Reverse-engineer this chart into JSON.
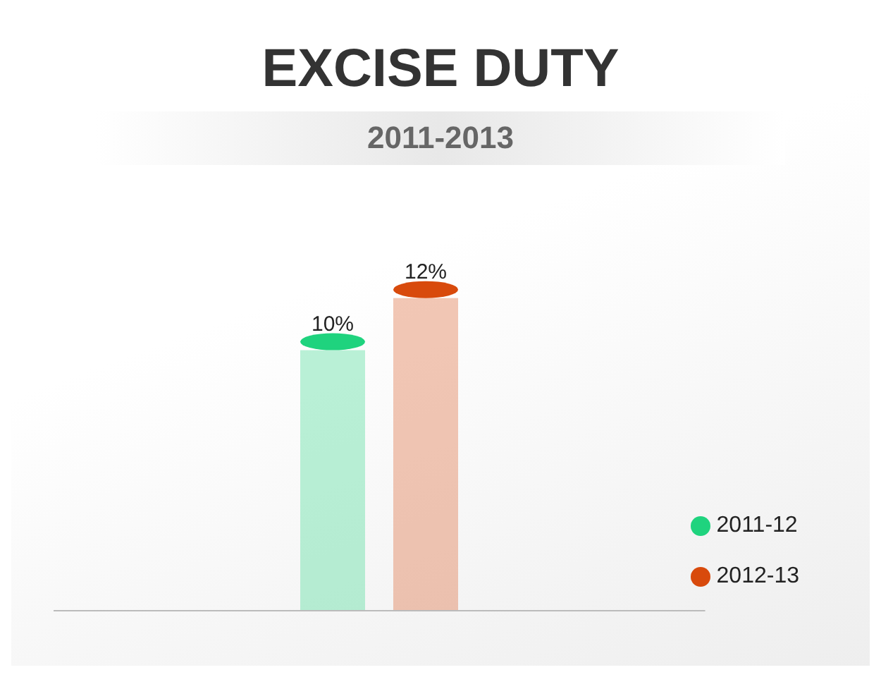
{
  "chart_data": {
    "type": "bar",
    "title": "EXCISE DUTY",
    "subtitle": "2011-2013",
    "categories": [
      null
    ],
    "series": [
      {
        "name": "2011-12",
        "color": "#1fd37e",
        "values": [
          10
        ],
        "value_labels": [
          "10%"
        ]
      },
      {
        "name": "2012-13",
        "color": "#d84a0c",
        "values": [
          12
        ],
        "value_labels": [
          "12%"
        ]
      }
    ],
    "legend": "bottom right"
  }
}
